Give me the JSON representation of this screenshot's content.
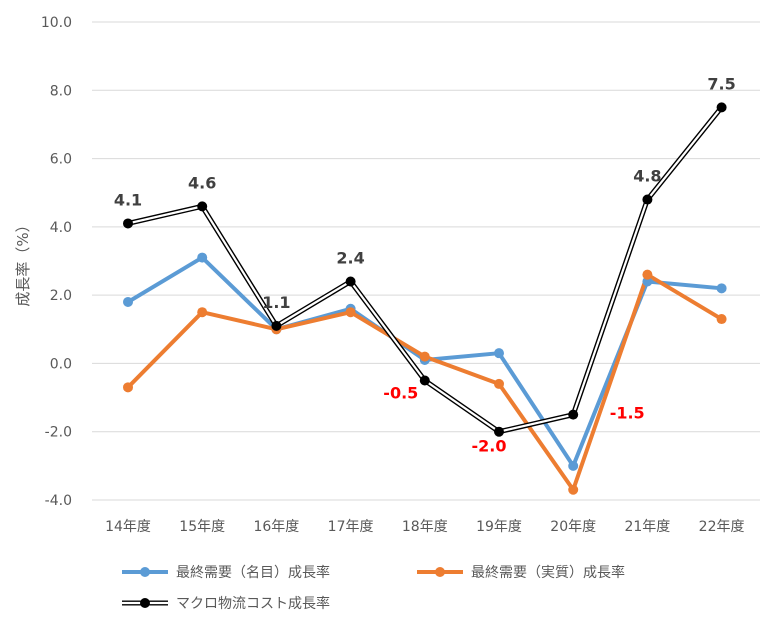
{
  "chart_data": {
    "type": "line",
    "ylabel": "成長率（%）",
    "ylim": [
      -4.0,
      10.0
    ],
    "yticks": [
      "10.0",
      "8.0",
      "6.0",
      "4.0",
      "2.0",
      "0.0",
      "-2.0",
      "-4.0"
    ],
    "ytick_values": [
      10,
      8,
      6,
      4,
      2,
      0,
      -2,
      -4
    ],
    "categories": [
      "14年度",
      "15年度",
      "16年度",
      "17年度",
      "18年度",
      "19年度",
      "20年度",
      "21年度",
      "22年度"
    ],
    "grid": true,
    "legend_position": "bottom",
    "series": [
      {
        "name": "最終需要（名目）成長率",
        "color": "#5b9bd5",
        "style": "solid",
        "values": [
          1.8,
          3.1,
          1.0,
          1.6,
          0.1,
          0.3,
          -3.0,
          2.4,
          2.2
        ]
      },
      {
        "name": "最終需要（実質）成長率",
        "color": "#ed7d31",
        "style": "solid",
        "values": [
          -0.7,
          1.5,
          1.0,
          1.5,
          0.2,
          -0.6,
          -3.7,
          2.6,
          1.3
        ]
      },
      {
        "name": "マクロ物流コスト成長率",
        "color": "#000000",
        "style": "double",
        "values": [
          4.1,
          4.6,
          1.1,
          2.4,
          -0.5,
          -2.0,
          -1.5,
          4.8,
          7.5
        ]
      }
    ],
    "data_labels": [
      {
        "series": 2,
        "index": 0,
        "text": "4.1",
        "color": "#404040"
      },
      {
        "series": 2,
        "index": 1,
        "text": "4.6",
        "color": "#404040"
      },
      {
        "series": 2,
        "index": 2,
        "text": "1.1",
        "color": "#404040"
      },
      {
        "series": 2,
        "index": 3,
        "text": "2.4",
        "color": "#404040"
      },
      {
        "series": 2,
        "index": 4,
        "text": "-0.5",
        "color": "#ff0000"
      },
      {
        "series": 2,
        "index": 5,
        "text": "-2.0",
        "color": "#ff0000"
      },
      {
        "series": 2,
        "index": 6,
        "text": "-1.5",
        "color": "#ff0000"
      },
      {
        "series": 2,
        "index": 7,
        "text": "4.8",
        "color": "#404040"
      },
      {
        "series": 2,
        "index": 8,
        "text": "7.5",
        "color": "#404040"
      }
    ]
  }
}
